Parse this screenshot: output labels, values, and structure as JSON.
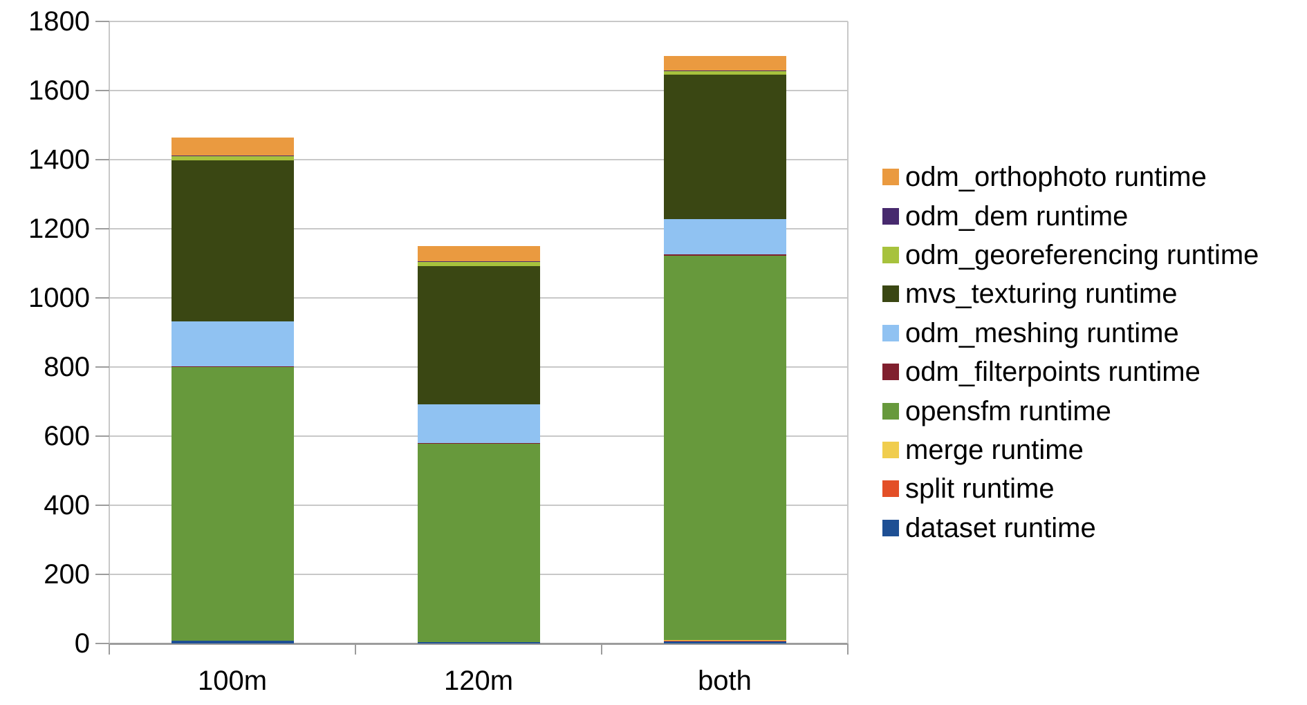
{
  "chart_data": {
    "type": "bar",
    "stacked": true,
    "title": "",
    "xlabel": "",
    "ylabel": "",
    "categories": [
      "100m",
      "120m",
      "both"
    ],
    "series": [
      {
        "name": "dataset runtime",
        "color": "#1e4f94",
        "values": [
          8,
          4,
          8
        ]
      },
      {
        "name": "split runtime",
        "color": "#e34f27",
        "values": [
          0,
          0,
          1
        ]
      },
      {
        "name": "merge runtime",
        "color": "#f0cd4e",
        "values": [
          0,
          0,
          1
        ]
      },
      {
        "name": "opensfm runtime",
        "color": "#67993c",
        "values": [
          793,
          574,
          1113
        ]
      },
      {
        "name": "odm_filterpoints runtime",
        "color": "#801f2e",
        "values": [
          2,
          2,
          3
        ]
      },
      {
        "name": "odm_meshing runtime",
        "color": "#90c2f2",
        "values": [
          130,
          112,
          102
        ]
      },
      {
        "name": "mvs_texturing runtime",
        "color": "#3a4713",
        "values": [
          466,
          400,
          418
        ]
      },
      {
        "name": "odm_georeferencing runtime",
        "color": "#a7c23d",
        "values": [
          12,
          13,
          10
        ]
      },
      {
        "name": "odm_dem runtime",
        "color": "#472a6e",
        "values": [
          1,
          1,
          2
        ]
      },
      {
        "name": "odm_orthophoto runtime",
        "color": "#ea9a40",
        "values": [
          52,
          44,
          42
        ]
      }
    ],
    "ylim": [
      0,
      1800
    ],
    "yticks": [
      0,
      200,
      400,
      600,
      800,
      1000,
      1200,
      1400,
      1600,
      1800
    ],
    "grid": "horizontal",
    "legend": {
      "position": "right",
      "items_top_to_bottom": [
        "odm_orthophoto runtime",
        "odm_dem runtime",
        "odm_georeferencing runtime",
        "mvs_texturing runtime",
        "odm_meshing runtime",
        "odm_filterpoints runtime",
        "opensfm runtime",
        "merge runtime",
        "split runtime",
        "dataset runtime"
      ]
    },
    "background": "#ffffff"
  }
}
